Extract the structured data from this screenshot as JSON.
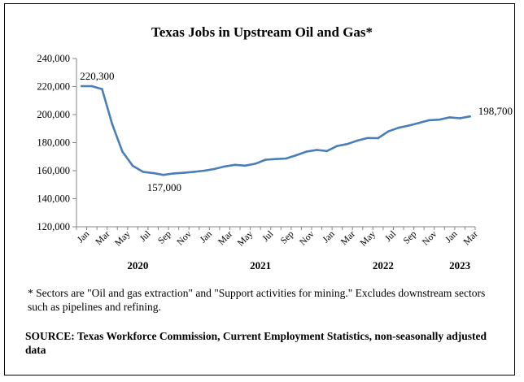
{
  "notes": {
    "footnote": "* Sectors are \"Oil and gas extraction\" and \"Support activities for mining.\"  Excludes downstream sectors such as pipelines and refining.",
    "source": "SOURCE: Texas Workforce Commission, Current Employment Statistics, non-seasonally adjusted data"
  },
  "colors": {
    "line": "#4a7ebb",
    "axis": "#868686"
  },
  "chart_data": {
    "type": "line",
    "title": "Texas Jobs in Upstream Oil and Gas*",
    "xlabel": "",
    "ylabel": "",
    "ylim": [
      120000,
      240000
    ],
    "yticks": [
      120000,
      140000,
      160000,
      180000,
      200000,
      220000,
      240000
    ],
    "ytick_labels": [
      "120,000",
      "140,000",
      "160,000",
      "180,000",
      "200,000",
      "220,000",
      "240,000"
    ],
    "grid": false,
    "legend": "none",
    "x": [
      "Jan 2020",
      "Feb 2020",
      "Mar 2020",
      "Apr 2020",
      "May 2020",
      "Jun 2020",
      "Jul 2020",
      "Aug 2020",
      "Sep 2020",
      "Oct 2020",
      "Nov 2020",
      "Dec 2020",
      "Jan 2021",
      "Feb 2021",
      "Mar 2021",
      "Apr 2021",
      "May 2021",
      "Jun 2021",
      "Jul 2021",
      "Aug 2021",
      "Sep 2021",
      "Oct 2021",
      "Nov 2021",
      "Dec 2021",
      "Jan 2022",
      "Feb 2022",
      "Mar 2022",
      "Apr 2022",
      "May 2022",
      "Jun 2022",
      "Jul 2022",
      "Aug 2022",
      "Sep 2022",
      "Oct 2022",
      "Nov 2022",
      "Dec 2022",
      "Jan 2023",
      "Feb 2023",
      "Mar 2023"
    ],
    "tick_labels": [
      {
        "index": 0,
        "label": "Jan"
      },
      {
        "index": 2,
        "label": "Mar"
      },
      {
        "index": 4,
        "label": "May"
      },
      {
        "index": 6,
        "label": "Jul"
      },
      {
        "index": 8,
        "label": "Sep"
      },
      {
        "index": 10,
        "label": "Nov"
      },
      {
        "index": 12,
        "label": "Jan"
      },
      {
        "index": 14,
        "label": "Mar"
      },
      {
        "index": 16,
        "label": "May"
      },
      {
        "index": 18,
        "label": "Jul"
      },
      {
        "index": 20,
        "label": "Sep"
      },
      {
        "index": 22,
        "label": "Nov"
      },
      {
        "index": 24,
        "label": "Jan"
      },
      {
        "index": 26,
        "label": "Mar"
      },
      {
        "index": 28,
        "label": "May"
      },
      {
        "index": 30,
        "label": "Jul"
      },
      {
        "index": 32,
        "label": "Sep"
      },
      {
        "index": 34,
        "label": "Nov"
      },
      {
        "index": 36,
        "label": "Jan"
      },
      {
        "index": 38,
        "label": "Mar"
      }
    ],
    "year_labels": [
      {
        "index": 5.5,
        "label": "2020"
      },
      {
        "index": 17.5,
        "label": "2021"
      },
      {
        "index": 29.5,
        "label": "2022"
      },
      {
        "index": 37,
        "label": "2023"
      }
    ],
    "series": [
      {
        "values": [
          220300,
          220300,
          218200,
          193000,
          173500,
          163500,
          159200,
          158300,
          157000,
          158000,
          158500,
          159200,
          160000,
          161200,
          163000,
          164200,
          163600,
          165000,
          167800,
          168300,
          168700,
          171000,
          173600,
          174800,
          174000,
          177600,
          179000,
          181500,
          183300,
          183200,
          188000,
          190600,
          192200,
          194000,
          196000,
          196400,
          198000,
          197400,
          198700
        ]
      }
    ],
    "annotations": [
      {
        "index": 0,
        "value": 220300,
        "text": "220,300",
        "position": "above"
      },
      {
        "index": 8,
        "value": 157000,
        "text": "157,000",
        "position": "below"
      },
      {
        "index": 38,
        "value": 198700,
        "text": "198,700",
        "position": "right"
      }
    ]
  }
}
